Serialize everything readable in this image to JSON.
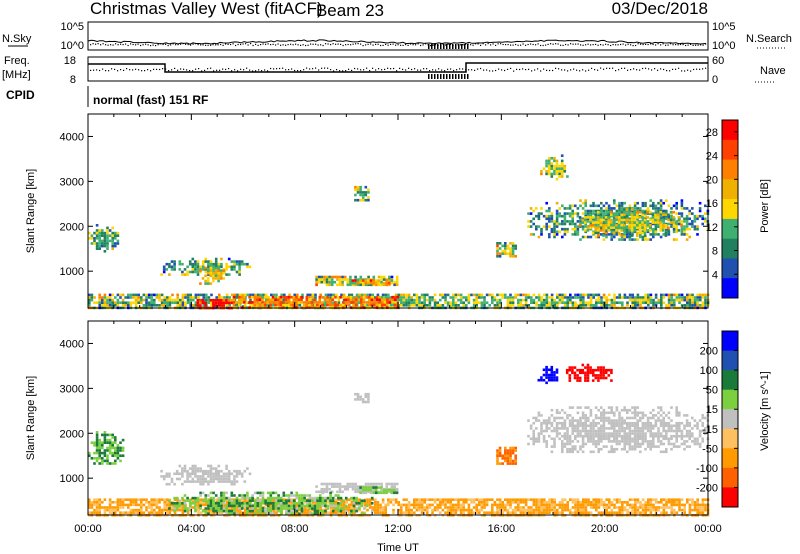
{
  "header": {
    "station": "Christmas Valley West (fitACF)",
    "beam": "Beam 23",
    "date": "03/Dec/2018"
  },
  "left_labels": {
    "nsky": "N.Sky",
    "freq_line1": "Freq.",
    "freq_line2": "[MHz]",
    "cpid": "CPID"
  },
  "right_labels": {
    "nsearch": "N.Search",
    "nave": "Nave"
  },
  "noise_panel": {
    "tick_top": "10^5",
    "tick_bottom": "10^0"
  },
  "freq_panel": {
    "left_ticks": [
      "18",
      "8"
    ],
    "right_ticks": [
      "60",
      "0"
    ]
  },
  "cpid_text": "normal (fast) 151 RF",
  "colors": {
    "power_scale": [
      "#0000ff",
      "#2050b0",
      "#208060",
      "#40b070",
      "#ffd700",
      "#f0b000",
      "#ff8000",
      "#ff4000",
      "#ff0000"
    ],
    "velocity_scale": [
      "#0000ff",
      "#2050b0",
      "#1a7a3a",
      "#7cd040",
      "#c0c0c0",
      "#ffc060",
      "#ff9a00",
      "#ff6000",
      "#ff0000"
    ]
  },
  "chart_data": [
    {
      "type": "heatmap",
      "name": "power",
      "xlabel": "",
      "ylabel": "Slant Range [km]",
      "xlim": [
        0,
        24
      ],
      "ylim": [
        180,
        4500
      ],
      "yticks": [
        "1000",
        "2000",
        "3000",
        "4000"
      ],
      "colorbar_label": "Power [dB]",
      "colorbar_ticks": [
        "4",
        "8",
        "12",
        "16",
        "20",
        "24",
        "28"
      ],
      "colorbar_range": [
        0,
        30
      ],
      "regions": [
        {
          "t0": 0.0,
          "t1": 1.2,
          "r0": 1450,
          "r1": 2050,
          "value": 10
        },
        {
          "t0": 2.8,
          "t1": 6.3,
          "r0": 900,
          "r1": 1300,
          "value": 11
        },
        {
          "t0": 4.3,
          "t1": 5.3,
          "r0": 700,
          "r1": 1100,
          "value": 16
        },
        {
          "t0": 8.8,
          "t1": 12.0,
          "r0": 700,
          "r1": 900,
          "value": 14
        },
        {
          "t0": 10.2,
          "t1": 11.8,
          "r0": 720,
          "r1": 820,
          "value": 20
        },
        {
          "t0": 10.3,
          "t1": 10.9,
          "r0": 2600,
          "r1": 2900,
          "value": 11
        },
        {
          "t0": 15.8,
          "t1": 16.6,
          "r0": 1350,
          "r1": 1650,
          "value": 14
        },
        {
          "t0": 17.5,
          "t1": 18.6,
          "r0": 3050,
          "r1": 3600,
          "value": 13
        },
        {
          "t0": 17.0,
          "t1": 24.0,
          "r0": 1700,
          "r1": 2600,
          "value": 10
        },
        {
          "t0": 19.0,
          "t1": 23.0,
          "r0": 1800,
          "r1": 2400,
          "value": 15
        },
        {
          "t0": 0.0,
          "t1": 24.0,
          "r0": 190,
          "r1": 500,
          "value": 12
        },
        {
          "t0": 4.2,
          "t1": 5.6,
          "r0": 190,
          "r1": 380,
          "value": 29
        },
        {
          "t0": 5.6,
          "t1": 12.0,
          "r0": 190,
          "r1": 450,
          "value": 22
        }
      ]
    },
    {
      "type": "heatmap",
      "name": "velocity",
      "xlabel": "Time UT",
      "ylabel": "Slant Range [km]",
      "xlim": [
        0,
        24
      ],
      "ylim": [
        180,
        4500
      ],
      "xticks": [
        "00:00",
        "04:00",
        "08:00",
        "12:00",
        "16:00",
        "20:00",
        "00:00"
      ],
      "yticks": [
        "1000",
        "2000",
        "3000",
        "4000"
      ],
      "colorbar_label": "Velocity [m s^-1]",
      "colorbar_ticks": [
        "200",
        "100",
        "50",
        "15",
        "-15",
        "-50",
        "-100",
        "-200"
      ],
      "colorbar_range": [
        -250,
        250
      ],
      "regions": [
        {
          "t0": 0.0,
          "t1": 1.4,
          "r0": 1300,
          "r1": 2050,
          "value": 30
        },
        {
          "t0": 2.8,
          "t1": 6.3,
          "r0": 850,
          "r1": 1300,
          "value": 0
        },
        {
          "t0": 8.8,
          "t1": 12.0,
          "r0": 700,
          "r1": 900,
          "value": 0
        },
        {
          "t0": 10.5,
          "t1": 12.0,
          "r0": 700,
          "r1": 820,
          "value": 25
        },
        {
          "t0": 10.3,
          "t1": 10.9,
          "r0": 2700,
          "r1": 2900,
          "value": 0
        },
        {
          "t0": 15.8,
          "t1": 16.6,
          "r0": 1350,
          "r1": 1700,
          "value": -80
        },
        {
          "t0": 17.4,
          "t1": 18.2,
          "r0": 3100,
          "r1": 3500,
          "value": 220
        },
        {
          "t0": 18.5,
          "t1": 20.3,
          "r0": 3150,
          "r1": 3550,
          "value": -220
        },
        {
          "t0": 17.0,
          "t1": 24.0,
          "r0": 1600,
          "r1": 2600,
          "value": 0
        },
        {
          "t0": 0.0,
          "t1": 24.0,
          "r0": 190,
          "r1": 550,
          "value": -35
        },
        {
          "t0": 3.0,
          "t1": 11.0,
          "r0": 190,
          "r1": 700,
          "value": 25
        }
      ]
    }
  ]
}
